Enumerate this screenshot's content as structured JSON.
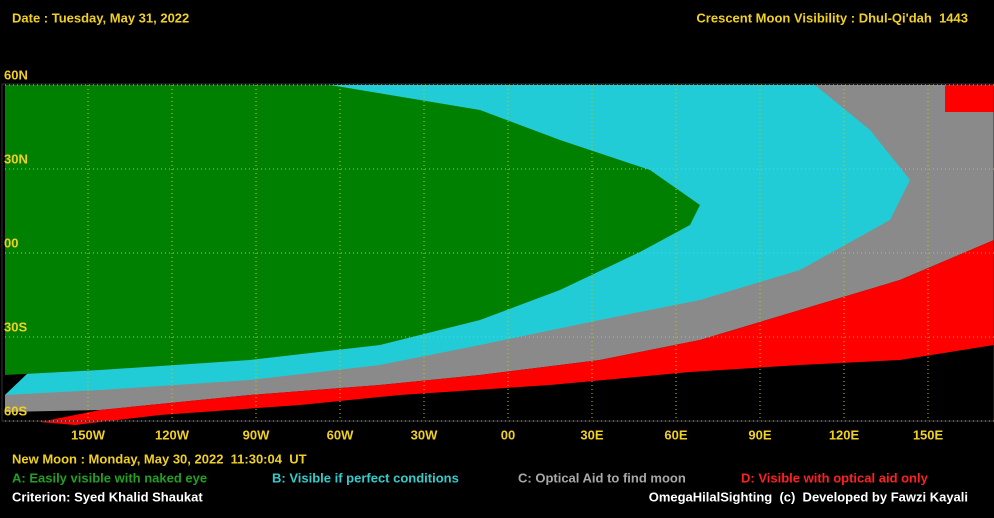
{
  "header": {
    "date": "Date : Tuesday, May 31, 2022",
    "title": "Crescent Moon Visibility : Dhul-Qi'dah  1443"
  },
  "map": {
    "lat_labels": [
      "60N",
      "30N",
      "00",
      "30S",
      "60S"
    ],
    "lon_labels": [
      "150W",
      "120W",
      "90W",
      "60W",
      "30W",
      "00",
      "30E",
      "60E",
      "90E",
      "120E",
      "150E"
    ]
  },
  "footer": {
    "new_moon": "New Moon : Monday, May 30, 2022  11:30:04  UT",
    "legend": [
      {
        "label": "A: Easily visible with naked eye",
        "color": "#22a022"
      },
      {
        "label": "B: Visible if perfect conditions",
        "color": "#33cccc"
      },
      {
        "label": "C: Optical Aid to find moon",
        "color": "#a8a8a8"
      },
      {
        "label": "D: Visible with optical aid only",
        "color": "#ff2020"
      }
    ],
    "criterion": "Criterion: Syed Khalid Shaukat",
    "credit": "OmegaHilalSighting  (c)  Developed by Fawzi Kayali"
  }
}
